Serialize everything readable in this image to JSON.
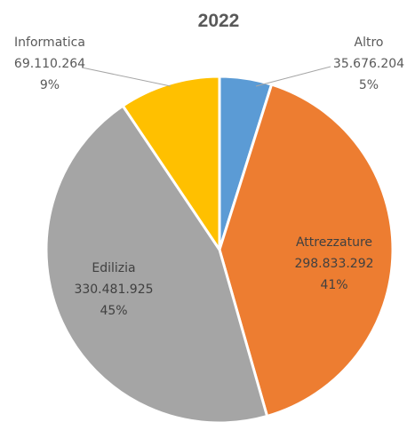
{
  "chart_data": {
    "type": "pie",
    "title": "2022",
    "slices": [
      {
        "label": "Altro",
        "value_text": "35.676.204",
        "value": 35676204,
        "percent": "5%",
        "color": "#5B9BD5",
        "label_color": "#595959"
      },
      {
        "label": "Attrezzature",
        "value_text": "298.833.292",
        "value": 298833292,
        "percent": "41%",
        "color": "#ED7D31",
        "label_color": "#404040"
      },
      {
        "label": "Edilizia",
        "value_text": "330.481.925",
        "value": 330481925,
        "percent": "45%",
        "color": "#A5A5A5",
        "label_color": "#404040"
      },
      {
        "label": "Informatica",
        "value_text": "69.110.264",
        "value": 69110264,
        "percent": "9%",
        "color": "#FFC000",
        "label_color": "#595959"
      }
    ],
    "start_angle": "12 o'clock",
    "direction": "clockwise",
    "legend": "none"
  }
}
